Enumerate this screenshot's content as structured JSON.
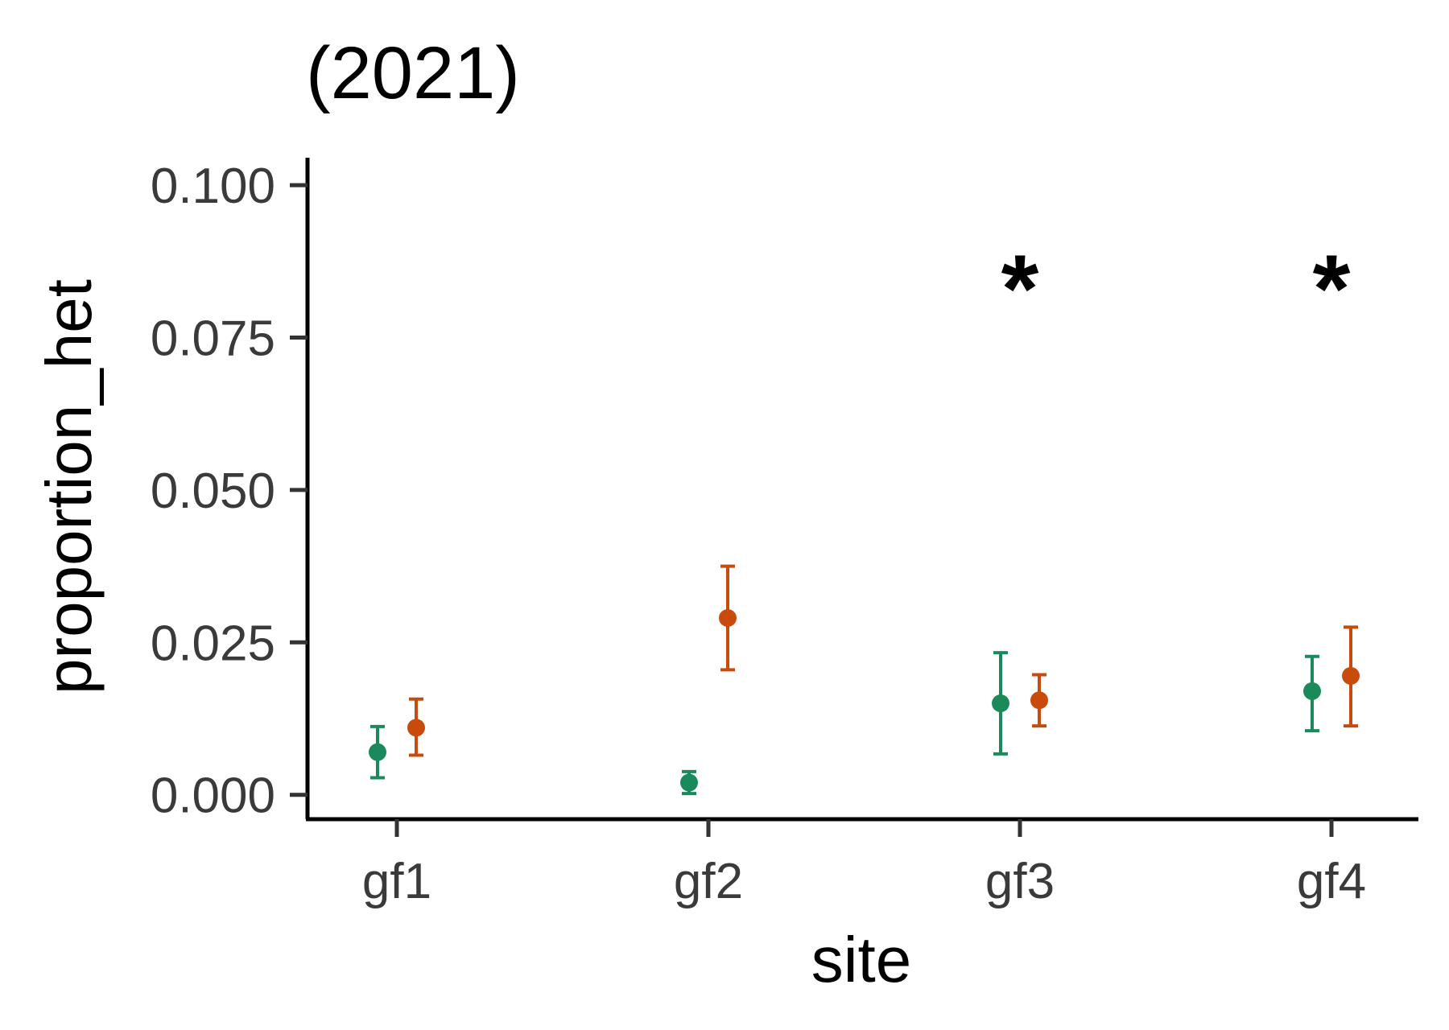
{
  "chart_data": {
    "type": "scatter",
    "title": "(2021)",
    "xlabel": "site",
    "ylabel": "proportion_het",
    "categories": [
      "gf1",
      "gf2",
      "gf3",
      "gf4"
    ],
    "ylim": [
      -0.004,
      0.1045
    ],
    "yticks": [
      0.0,
      0.025,
      0.05,
      0.075,
      0.1
    ],
    "ytick_labels": [
      "0.000",
      "0.025",
      "0.050",
      "0.075",
      "0.100"
    ],
    "grid": false,
    "legend": "none",
    "series": [
      {
        "color": "#1b8a5a",
        "values": [
          0.007,
          0.002,
          0.015,
          0.017
        ],
        "lower": [
          0.0028,
          0.0002,
          0.0067,
          0.0105
        ],
        "upper": [
          0.0112,
          0.0038,
          0.0233,
          0.0227
        ]
      },
      {
        "color": "#c84b0c",
        "values": [
          0.011,
          0.029,
          0.0155,
          0.0195
        ],
        "lower": [
          0.0065,
          0.0205,
          0.0113,
          0.0113
        ],
        "upper": [
          0.0157,
          0.0375,
          0.0197,
          0.0275
        ]
      }
    ],
    "annotations": [
      {
        "category": "gf3",
        "y": 0.0855,
        "text": "*"
      },
      {
        "category": "gf4",
        "y": 0.0855,
        "text": "*"
      }
    ]
  }
}
